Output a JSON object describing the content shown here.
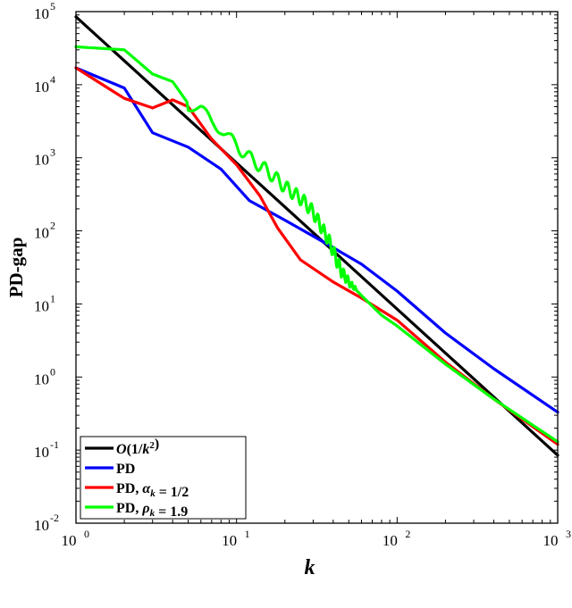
{
  "chart_data": {
    "type": "line",
    "xlabel": "k",
    "ylabel": "PD-gap",
    "xscale": "log",
    "yscale": "log",
    "xlim": [
      1,
      1000
    ],
    "ylim": [
      0.01,
      100000
    ],
    "grid": false,
    "legend_position": "bottom-left",
    "x_ticks": [
      {
        "base": "10",
        "exp": "0"
      },
      {
        "base": "10",
        "exp": "1"
      },
      {
        "base": "10",
        "exp": "2"
      },
      {
        "base": "10",
        "exp": "3"
      }
    ],
    "y_ticks": [
      {
        "base": "10",
        "exp": "-2"
      },
      {
        "base": "10",
        "exp": "-1"
      },
      {
        "base": "10",
        "exp": "0"
      },
      {
        "base": "10",
        "exp": "1"
      },
      {
        "base": "10",
        "exp": "2"
      },
      {
        "base": "10",
        "exp": "3"
      },
      {
        "base": "10",
        "exp": "4"
      },
      {
        "base": "10",
        "exp": "5"
      }
    ],
    "series": [
      {
        "name": "O(1/k²)",
        "legend_parts": [
          {
            "t": "O",
            "i": true
          },
          {
            "t": "(1/",
            "i": false
          },
          {
            "t": "k",
            "i": true
          },
          {
            "t": "2",
            "sup": true
          },
          {
            "t": ")",
            "i": false
          }
        ],
        "color": "#000000",
        "x": [
          1,
          1000
        ],
        "y": [
          85000,
          0.085
        ]
      },
      {
        "name": "PD",
        "legend_parts": [
          {
            "t": "PD",
            "i": false
          }
        ],
        "color": "#0000ff",
        "x": [
          1,
          2,
          3,
          5,
          8,
          12,
          20,
          35,
          60,
          100,
          200,
          400,
          1000
        ],
        "y": [
          17000,
          9000,
          2200,
          1400,
          700,
          260,
          140,
          70,
          35,
          15,
          4,
          1.3,
          0.33
        ]
      },
      {
        "name": "PD, α_k = 1/2",
        "legend_parts": [
          {
            "t": "PD, ",
            "i": false
          },
          {
            "t": "α",
            "i": true
          },
          {
            "t": "k",
            "i": true,
            "sub": true
          },
          {
            "t": " = 1/2",
            "i": false
          }
        ],
        "color": "#ff0000",
        "x": [
          1,
          2,
          3,
          4,
          5,
          7,
          10,
          14,
          18,
          25,
          40,
          60,
          100,
          200,
          400,
          1000
        ],
        "y": [
          17000,
          6500,
          4800,
          6200,
          5000,
          1800,
          800,
          300,
          110,
          40,
          20,
          12,
          6,
          1.6,
          0.5,
          0.12
        ]
      },
      {
        "name": "PD, ρ_k = 1.9",
        "legend_parts": [
          {
            "t": "PD, ",
            "i": false
          },
          {
            "t": "ρ",
            "i": true
          },
          {
            "t": "k",
            "i": true,
            "sub": true
          },
          {
            "t": " = 1.9",
            "i": false
          }
        ],
        "color": "#00ff00",
        "x": [
          1,
          2,
          3,
          4,
          5,
          6,
          7,
          8,
          9,
          10,
          12,
          15,
          18,
          20,
          23,
          26,
          30,
          34,
          38,
          42,
          45,
          50,
          60,
          80,
          100,
          200,
          400,
          1000
        ],
        "y": [
          33000,
          30000,
          14000,
          11000,
          5500,
          4500,
          3000,
          2600,
          1800,
          1500,
          1000,
          700,
          500,
          400,
          320,
          260,
          180,
          110,
          70,
          40,
          28,
          20,
          13,
          7,
          5,
          1.5,
          0.5,
          0.13
        ]
      }
    ]
  }
}
